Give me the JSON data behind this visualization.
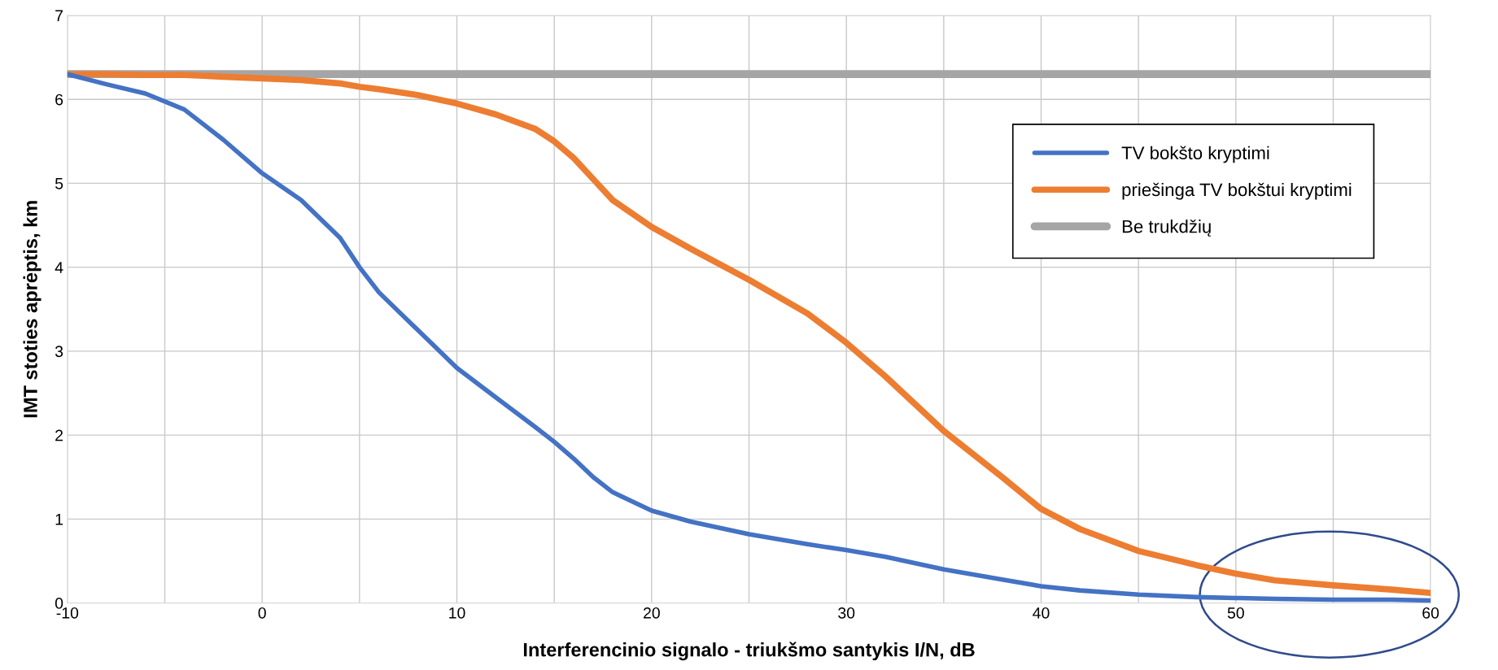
{
  "chart_data": {
    "type": "line",
    "xlabel": "Interferencinio signalo - triukšmo santykis I/N, dB",
    "ylabel": "IMT stoties aprėptis, km",
    "x": [
      -10,
      -8,
      -6,
      -4,
      -2,
      0,
      2,
      4,
      5,
      6,
      8,
      10,
      12,
      14,
      15,
      16,
      17,
      18,
      20,
      22,
      25,
      28,
      30,
      32,
      35,
      38,
      40,
      42,
      45,
      48,
      50,
      52,
      55,
      58,
      60
    ],
    "series": [
      {
        "name": "TV bokšto kryptimi",
        "color": "#4472c4",
        "values": [
          6.3,
          6.18,
          6.07,
          5.88,
          5.52,
          5.12,
          4.8,
          4.35,
          4.0,
          3.7,
          3.25,
          2.8,
          2.45,
          2.1,
          1.92,
          1.72,
          1.5,
          1.32,
          1.1,
          0.97,
          0.82,
          0.7,
          0.63,
          0.55,
          0.4,
          0.28,
          0.2,
          0.15,
          0.1,
          0.07,
          0.06,
          0.05,
          0.04,
          0.04,
          0.03
        ]
      },
      {
        "name": "priešinga TV bokštui kryptimi",
        "color": "#ed7d31",
        "values": [
          6.3,
          6.3,
          6.29,
          6.29,
          6.27,
          6.25,
          6.23,
          6.19,
          6.15,
          6.12,
          6.05,
          5.95,
          5.82,
          5.65,
          5.5,
          5.3,
          5.05,
          4.8,
          4.48,
          4.22,
          3.85,
          3.45,
          3.1,
          2.7,
          2.05,
          1.5,
          1.12,
          0.88,
          0.62,
          0.45,
          0.35,
          0.27,
          0.21,
          0.16,
          0.12
        ]
      },
      {
        "name": "Be trukdžių",
        "color": "#a5a5a5",
        "values": [
          6.3,
          6.3,
          6.3,
          6.3,
          6.3,
          6.3,
          6.3,
          6.3,
          6.3,
          6.3,
          6.3,
          6.3,
          6.3,
          6.3,
          6.3,
          6.3,
          6.3,
          6.3,
          6.3,
          6.3,
          6.3,
          6.3,
          6.3,
          6.3,
          6.3,
          6.3,
          6.3,
          6.3,
          6.3,
          6.3,
          6.3,
          6.3,
          6.3,
          6.3,
          6.3
        ]
      }
    ],
    "xlim": [
      -10,
      60
    ],
    "xticks": [
      -10,
      {
        "value": -5,
        "label": null
      },
      0,
      {
        "value": 5,
        "label": null
      },
      10,
      {
        "value": 15,
        "label": null
      },
      20,
      {
        "value": 25,
        "label": null
      },
      30,
      {
        "value": 35,
        "label": null
      },
      40,
      {
        "value": 45,
        "label": null
      },
      50,
      {
        "value": 55,
        "label": null
      },
      60
    ],
    "ylim": [
      0,
      7
    ],
    "yticks": [
      0,
      1,
      2,
      3,
      4,
      5,
      6,
      7
    ],
    "grid": true,
    "legend": "top right",
    "marker": "none",
    "line_style": "solid"
  }
}
